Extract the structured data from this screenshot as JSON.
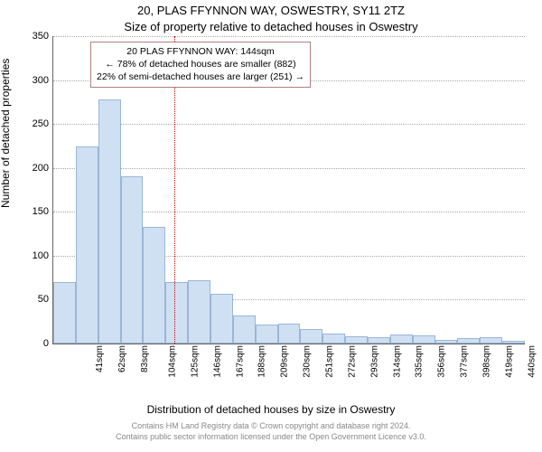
{
  "title": "20, PLAS FFYNNON WAY, OSWESTRY, SY11 2TZ",
  "subtitle": "Size of property relative to detached houses in Oswestry",
  "ylabel": "Number of detached properties",
  "xlabel": "Distribution of detached houses by size in Oswestry",
  "chart": {
    "type": "histogram",
    "ylim": [
      0,
      350
    ],
    "ytick_step": 50,
    "background_color": "#ffffff",
    "grid_color": "#aaaaaa",
    "bar_fill": "#cfe0f3",
    "bar_stroke": "#9ab6d6",
    "marker_color": "#cc0000",
    "marker_x_value": 144,
    "x_start": 41,
    "x_step": 21,
    "x_unit": "sqm",
    "tick_fontsize": 10,
    "label_fontsize": 12,
    "title_fontsize": 13,
    "bars": [
      70,
      224,
      278,
      190,
      133,
      70,
      72,
      57,
      32,
      22,
      23,
      17,
      11,
      8,
      7,
      10,
      9,
      4,
      6,
      7,
      3
    ]
  },
  "infobox": {
    "line1": "20 PLAS FFYNNON WAY: 144sqm",
    "line2": "← 78% of detached houses are smaller (882)",
    "line3": "22% of semi-detached houses are larger (251) →",
    "border": "#b08080"
  },
  "footer": {
    "line1": "Contains HM Land Registry data © Crown copyright and database right 2024.",
    "line2": "Contains public sector information licensed under the Open Government Licence v3.0."
  }
}
